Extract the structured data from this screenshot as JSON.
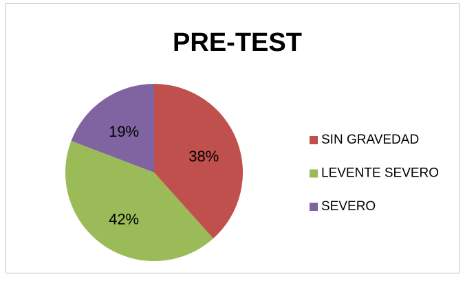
{
  "chart_data": {
    "type": "pie",
    "title": "PRE-TEST",
    "categories": [
      "SIN GRAVEDAD",
      "LEVENTE SEVERO",
      "SEVERO"
    ],
    "values": [
      38,
      42,
      19
    ],
    "value_labels": [
      "38%",
      "42%",
      "19%"
    ],
    "colors": [
      "#c0504d",
      "#9bbb59",
      "#8064a2"
    ],
    "legend": "right"
  }
}
